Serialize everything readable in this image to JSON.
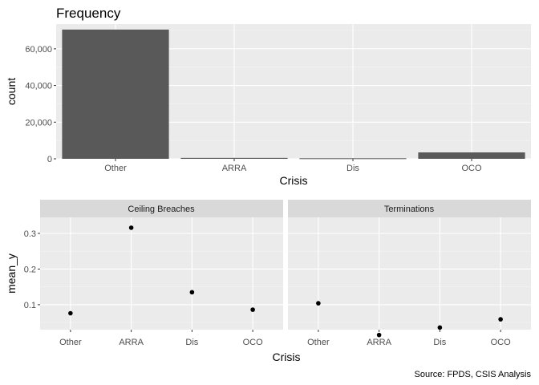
{
  "caption": "Source: FPDS, CSIS Analysis",
  "chart_data": [
    {
      "type": "bar",
      "title": "Frequency",
      "xlabel": "Crisis",
      "ylabel": "count",
      "categories": [
        "Other",
        "ARRA",
        "Dis",
        "OCO"
      ],
      "values": [
        70500,
        500,
        300,
        3500
      ],
      "ylim": [
        0,
        73500
      ],
      "yticks": [
        0,
        20000,
        40000,
        60000
      ],
      "ytick_labels": [
        "0",
        "20,000",
        "40,000",
        "60,000"
      ],
      "bar_color": "#595959",
      "panel_background": "#ebebeb",
      "grid": true
    },
    {
      "type": "scatter",
      "xlabel": "Crisis",
      "ylabel": "mean_y",
      "categories": [
        "Other",
        "ARRA",
        "Dis",
        "OCO"
      ],
      "ylim": [
        0.03,
        0.345
      ],
      "yticks": [
        0.1,
        0.2,
        0.3
      ],
      "ytick_labels": [
        "0.1",
        "0.2",
        "0.3"
      ],
      "point_color": "#000000",
      "panel_background": "#ebebeb",
      "strip_background": "#d9d9d9",
      "grid": true,
      "facets": [
        {
          "label": "Ceiling Breaches",
          "values": [
            0.076,
            0.316,
            0.135,
            0.086
          ]
        },
        {
          "label": "Terminations",
          "values": [
            0.104,
            0.015,
            0.036,
            0.059
          ]
        }
      ]
    }
  ]
}
